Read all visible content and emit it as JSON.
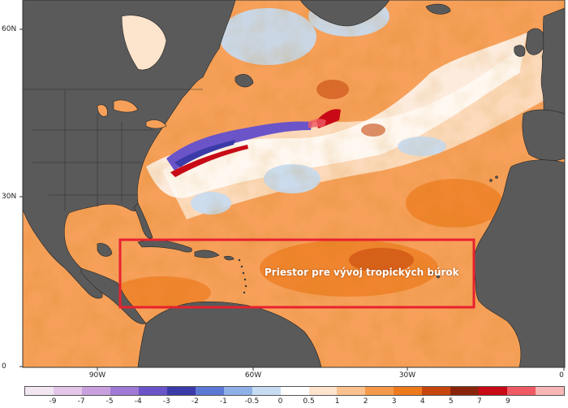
{
  "map": {
    "latitude_labels": [
      "60N",
      "30N",
      "0"
    ],
    "longitude_labels": [
      "90W",
      "60W",
      "30W",
      "0"
    ],
    "region_label": "Priestor pre vývoj tropických búrok",
    "region_box_color": "#e8212e",
    "land_color": "#5a5a5a",
    "ocean_base_color": "#f6a05a"
  },
  "colorbar": {
    "ticks": [
      "-9",
      "-7",
      "-5",
      "-4",
      "-3",
      "-2",
      "-1",
      "-0.5",
      "0",
      "0.5",
      "1",
      "2",
      "3",
      "4",
      "5",
      "7",
      "9"
    ],
    "colors": [
      "#f3e6f3",
      "#e3c6ea",
      "#c9a0df",
      "#9e7ad6",
      "#6a54c8",
      "#3a3aa8",
      "#5a78d4",
      "#8fb0e6",
      "#c6dcf2",
      "#ffffff",
      "#fde4cc",
      "#fbc28f",
      "#f59a4a",
      "#ee7a1e",
      "#c7460e",
      "#8a2409",
      "#c80a16",
      "#f05a64",
      "#f8b6b6"
    ]
  }
}
